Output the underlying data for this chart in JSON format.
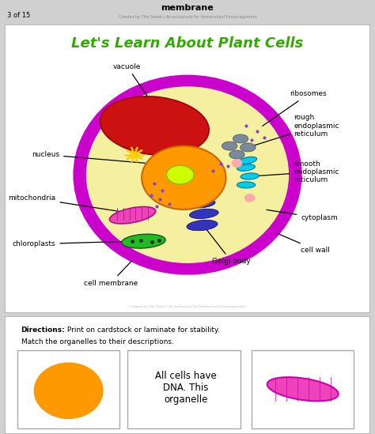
{
  "title": "Let's Learn About Plant Cells",
  "title_color": "#33aa00",
  "page_bg": "#d0d0d0",
  "header_text": "membrane",
  "page_num": "3 of 15",
  "credit_text": "Created by This Sweet Life exclusively for Homeschool Encouragement",
  "cell_wall_color": "#cc00cc",
  "cell_membrane_color": "#cc00cc",
  "cytoplasm_color": "#f5f0a0",
  "vacuole_color": "#cc1111",
  "nucleus_color": "#ff9900",
  "nucleolus_color": "#ccff00",
  "mitochondria_color": "#ee44bb",
  "chloroplast_color": "#22bb22",
  "golgi_color": "#3333bb",
  "smooth_er_color": "#00ccee",
  "rough_er_color": "#7a8a9a",
  "ribosome_color": "#8844cc",
  "starburst_color": "#ffcc00",
  "pink_dot_color": "#ffaaaa",
  "directions_bold": "Directions:",
  "directions_text": " Print on cardstock or laminate for stability.",
  "directions_text2": "Match the organelles to their descriptions.",
  "bottom_card_text": "All cells have\nDNA. This\norganelle",
  "bottom_left_color": "#ff9900",
  "bottom_right_color": "#ee44bb"
}
